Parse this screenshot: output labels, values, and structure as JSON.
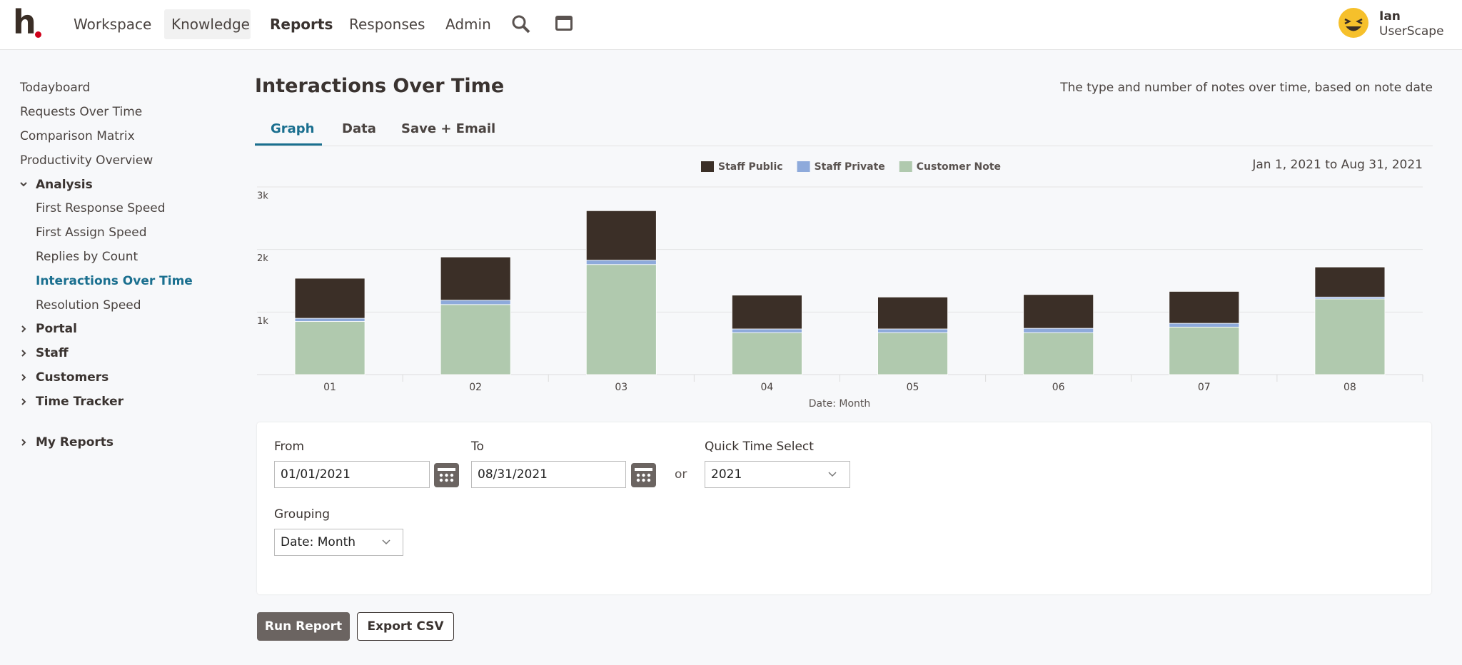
{
  "nav": {
    "logo": "h",
    "items": [
      "Workspace",
      "Knowledge",
      "Reports",
      "Responses",
      "Admin"
    ],
    "user": {
      "name": "Ian",
      "org": "UserScape"
    }
  },
  "sidebar": {
    "top": [
      "Todayboard",
      "Requests Over Time",
      "Comparison Matrix",
      "Productivity Overview"
    ],
    "analysis": {
      "label": "Analysis",
      "items": [
        "First Response Speed",
        "First Assign Speed",
        "Replies by Count",
        "Interactions Over Time",
        "Resolution Speed"
      ]
    },
    "groups": [
      "Portal",
      "Staff",
      "Customers",
      "Time Tracker"
    ],
    "my_reports": "My Reports"
  },
  "header": {
    "title": "Interactions Over Time",
    "description": "The type and number of notes over time, based on note date"
  },
  "tabs": [
    "Graph",
    "Data",
    "Save + Email"
  ],
  "chart_data": {
    "type": "stacked_bar",
    "date_range": "Jan 1, 2021 to Aug 31, 2021",
    "x_label": "Date: Month",
    "categories": [
      "01",
      "02",
      "03",
      "04",
      "05",
      "06",
      "07",
      "08"
    ],
    "series": [
      {
        "name": "Staff Public",
        "color": "#3b2f27",
        "values": [
          640,
          690,
          790,
          540,
          510,
          540,
          510,
          480
        ]
      },
      {
        "name": "Staff Private",
        "color": "#8eaadb",
        "values": [
          50,
          70,
          70,
          60,
          60,
          70,
          60,
          30
        ]
      },
      {
        "name": "Customer Note",
        "color": "#b0c9ae",
        "values": [
          850,
          1120,
          1760,
          670,
          670,
          670,
          760,
          1210
        ]
      }
    ],
    "ylim": [
      0,
      3000
    ],
    "yticks": [
      {
        "value": 1000,
        "label": "1k"
      },
      {
        "value": 2000,
        "label": "2k"
      },
      {
        "value": 3000,
        "label": "3k"
      }
    ],
    "grid": true
  },
  "form": {
    "from": {
      "label": "From",
      "value": "01/01/2021"
    },
    "to": {
      "label": "To",
      "value": "08/31/2021"
    },
    "or": "or",
    "quick": {
      "label": "Quick Time Select",
      "value": "2021"
    },
    "grouping": {
      "label": "Grouping",
      "value": "Date: Month"
    }
  },
  "buttons": {
    "run": "Run Report",
    "export": "Export CSV"
  }
}
